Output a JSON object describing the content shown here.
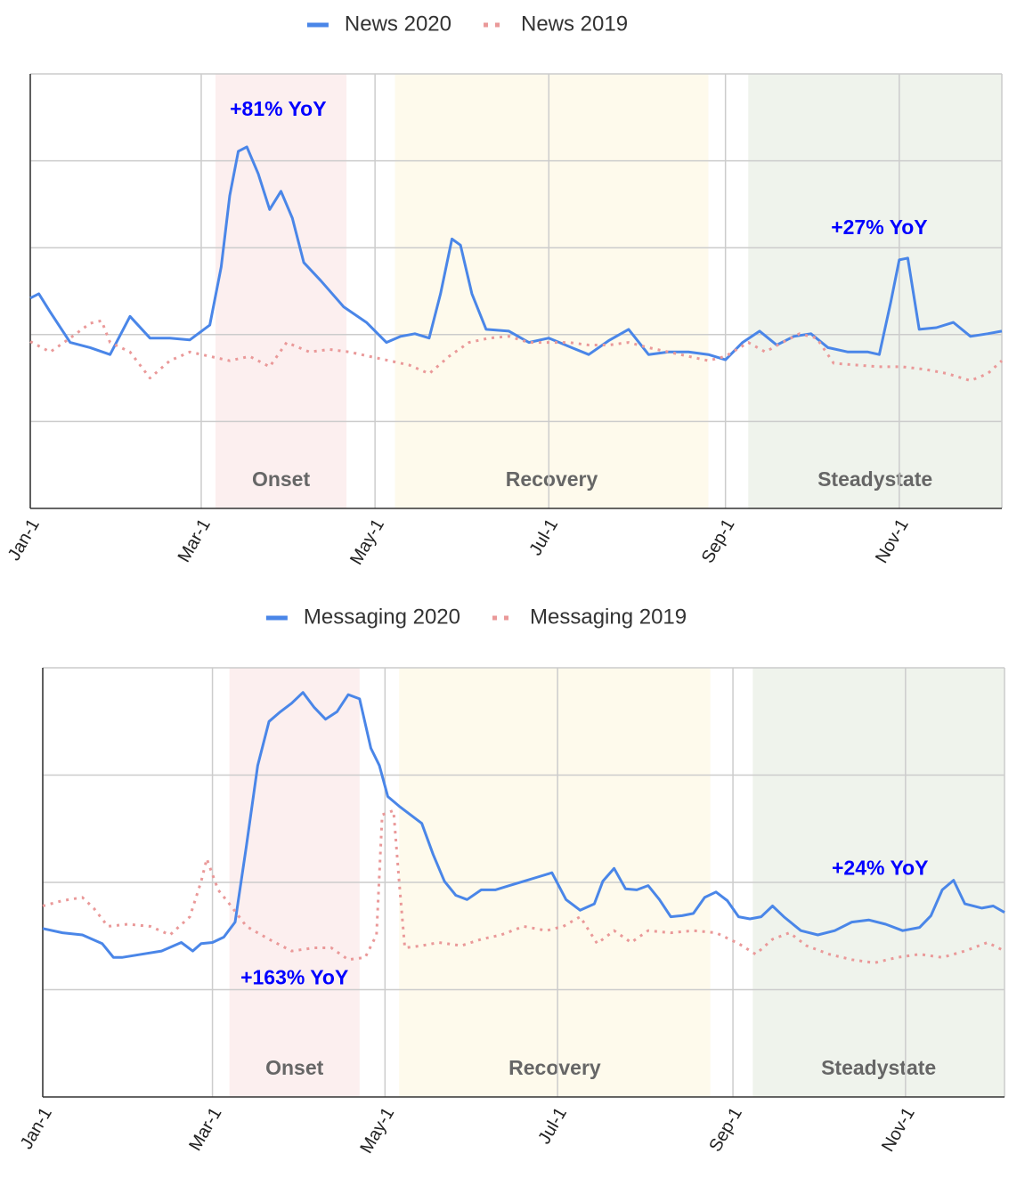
{
  "chart_data": [
    {
      "type": "line",
      "xlim": [
        0,
        341
      ],
      "ylim": [
        0,
        5
      ],
      "ygrid": [
        1,
        2,
        3,
        4
      ],
      "xticks": [
        {
          "value": 0,
          "label": "Jan-1"
        },
        {
          "value": 60,
          "label": "Mar-1"
        },
        {
          "value": 121,
          "label": "May-1"
        },
        {
          "value": 182,
          "label": "Jul-1"
        },
        {
          "value": 244,
          "label": "Sep-1"
        },
        {
          "value": 305,
          "label": "Nov-1"
        }
      ],
      "regions": [
        {
          "label": "Onset",
          "x": [
            65,
            111
          ],
          "color": "#fcefef"
        },
        {
          "label": "Recovery",
          "x": [
            128,
            238
          ],
          "color": "#fefaec"
        },
        {
          "label": "Steadystate",
          "x": [
            252,
            341
          ],
          "color": "#eff3ec"
        }
      ],
      "annotations": [
        {
          "text": "+81% YoY",
          "x": 87,
          "y": 4.58,
          "color": "#0000ff"
        },
        {
          "text": "+27% YoY",
          "x": 298,
          "y": 3.22,
          "color": "#0000ff"
        }
      ],
      "series": [
        {
          "name": "News 2020",
          "color": "#4a86e8",
          "style": "solid",
          "x": [
            0,
            3,
            7,
            14,
            21,
            28,
            35,
            42,
            49,
            56,
            63,
            67,
            70,
            73,
            76,
            80,
            84,
            88,
            92,
            96,
            102,
            110,
            118,
            125,
            130,
            135,
            140,
            144,
            148,
            151,
            155,
            160,
            168,
            175,
            182,
            190,
            196,
            203,
            210,
            217,
            224,
            231,
            238,
            244,
            250,
            256,
            262,
            268,
            274,
            280,
            287,
            294,
            298,
            302,
            305,
            308,
            312,
            318,
            324,
            330,
            336,
            341
          ],
          "values": [
            2.42,
            2.47,
            2.26,
            1.91,
            1.85,
            1.77,
            2.21,
            1.96,
            1.96,
            1.94,
            2.11,
            2.78,
            3.6,
            4.11,
            4.16,
            3.85,
            3.44,
            3.65,
            3.34,
            2.83,
            2.62,
            2.32,
            2.14,
            1.91,
            1.98,
            2.01,
            1.96,
            2.47,
            3.1,
            3.03,
            2.47,
            2.06,
            2.04,
            1.91,
            1.96,
            1.85,
            1.77,
            1.93,
            2.06,
            1.77,
            1.8,
            1.8,
            1.77,
            1.71,
            1.91,
            2.04,
            1.88,
            1.98,
            2.01,
            1.85,
            1.8,
            1.8,
            1.77,
            2.37,
            2.86,
            2.88,
            2.06,
            2.08,
            2.14,
            1.98,
            2.01,
            2.04
          ]
        },
        {
          "name": "News 2019",
          "color": "#ea9999",
          "style": "dotted",
          "x": [
            0,
            7,
            14,
            21,
            25,
            28,
            35,
            42,
            49,
            56,
            63,
            70,
            77,
            84,
            90,
            98,
            105,
            112,
            119,
            126,
            133,
            140,
            147,
            154,
            161,
            168,
            175,
            182,
            189,
            196,
            203,
            210,
            217,
            224,
            231,
            238,
            244,
            252,
            258,
            264,
            270,
            276,
            282,
            290,
            298,
            306,
            314,
            322,
            330,
            336,
            341
          ],
          "values": [
            1.92,
            1.8,
            1.96,
            2.13,
            2.16,
            1.91,
            1.8,
            1.5,
            1.7,
            1.8,
            1.75,
            1.7,
            1.75,
            1.63,
            1.91,
            1.8,
            1.83,
            1.8,
            1.75,
            1.7,
            1.65,
            1.55,
            1.75,
            1.91,
            1.96,
            1.98,
            1.91,
            1.91,
            1.91,
            1.88,
            1.88,
            1.91,
            1.85,
            1.8,
            1.75,
            1.7,
            1.75,
            1.91,
            1.8,
            1.91,
            2.01,
            1.96,
            1.67,
            1.65,
            1.63,
            1.63,
            1.6,
            1.55,
            1.47,
            1.55,
            1.7
          ]
        }
      ]
    },
    {
      "type": "line",
      "xlim": [
        0,
        340
      ],
      "ylim": [
        0,
        4
      ],
      "ygrid": [
        1,
        2,
        3
      ],
      "xticks": [
        {
          "value": 0,
          "label": "Jan-1"
        },
        {
          "value": 60,
          "label": "Mar-1"
        },
        {
          "value": 121,
          "label": "May-1"
        },
        {
          "value": 182,
          "label": "Jul-1"
        },
        {
          "value": 244,
          "label": "Sep-1"
        },
        {
          "value": 305,
          "label": "Nov-1"
        }
      ],
      "regions": [
        {
          "label": "Onset",
          "x": [
            66,
            112
          ],
          "color": "#fcefef"
        },
        {
          "label": "Recovery",
          "x": [
            126,
            236
          ],
          "color": "#fefaec"
        },
        {
          "label": "Steadystate",
          "x": [
            251,
            340
          ],
          "color": "#eff3ec"
        }
      ],
      "annotations": [
        {
          "text": "+163% YoY",
          "x": 89,
          "y": 1.1,
          "color": "#0000ff"
        },
        {
          "text": "+24% YoY",
          "x": 296,
          "y": 2.12,
          "color": "#0000ff"
        }
      ],
      "series": [
        {
          "name": "Messaging 2020",
          "color": "#4a86e8",
          "style": "solid",
          "x": [
            0,
            7,
            14,
            21,
            25,
            28,
            35,
            42,
            49,
            53,
            56,
            60,
            64,
            68,
            72,
            76,
            80,
            84,
            88,
            92,
            96,
            100,
            104,
            108,
            112,
            116,
            119,
            122,
            126,
            130,
            134,
            138,
            142,
            146,
            150,
            155,
            160,
            165,
            170,
            175,
            180,
            185,
            190,
            195,
            198,
            202,
            206,
            210,
            214,
            218,
            222,
            226,
            230,
            234,
            238,
            242,
            246,
            250,
            254,
            258,
            262,
            268,
            274,
            280,
            286,
            292,
            298,
            304,
            310,
            314,
            318,
            322,
            326,
            332,
            336,
            340
          ],
          "values": [
            1.57,
            1.53,
            1.51,
            1.43,
            1.3,
            1.3,
            1.33,
            1.36,
            1.44,
            1.36,
            1.43,
            1.44,
            1.49,
            1.63,
            2.34,
            3.09,
            3.5,
            3.59,
            3.67,
            3.77,
            3.63,
            3.52,
            3.59,
            3.75,
            3.71,
            3.25,
            3.09,
            2.8,
            2.71,
            2.63,
            2.55,
            2.26,
            2.01,
            1.88,
            1.84,
            1.93,
            1.93,
            1.97,
            2.01,
            2.05,
            2.09,
            1.84,
            1.74,
            1.8,
            2.01,
            2.13,
            1.94,
            1.93,
            1.97,
            1.84,
            1.68,
            1.69,
            1.71,
            1.86,
            1.91,
            1.83,
            1.68,
            1.66,
            1.68,
            1.78,
            1.68,
            1.55,
            1.51,
            1.55,
            1.63,
            1.65,
            1.61,
            1.55,
            1.58,
            1.69,
            1.93,
            2.02,
            1.8,
            1.76,
            1.78,
            1.72
          ]
        },
        {
          "name": "Messaging 2019",
          "color": "#ea9999",
          "style": "dotted",
          "x": [
            0,
            7,
            14,
            18,
            23,
            30,
            38,
            45,
            52,
            56,
            58,
            62,
            66,
            72,
            80,
            88,
            96,
            102,
            108,
            114,
            118,
            120,
            124,
            126,
            128,
            134,
            140,
            148,
            155,
            162,
            170,
            178,
            184,
            190,
            196,
            202,
            208,
            214,
            222,
            230,
            238,
            246,
            252,
            258,
            264,
            270,
            278,
            286,
            294,
            302,
            310,
            318,
            326,
            334,
            340
          ],
          "values": [
            1.78,
            1.83,
            1.86,
            1.76,
            1.59,
            1.61,
            1.59,
            1.51,
            1.68,
            2.01,
            2.22,
            1.93,
            1.8,
            1.59,
            1.47,
            1.36,
            1.39,
            1.39,
            1.28,
            1.3,
            1.51,
            2.63,
            2.67,
            2.01,
            1.39,
            1.41,
            1.44,
            1.41,
            1.47,
            1.51,
            1.59,
            1.55,
            1.59,
            1.68,
            1.43,
            1.55,
            1.44,
            1.55,
            1.53,
            1.55,
            1.53,
            1.43,
            1.33,
            1.47,
            1.53,
            1.41,
            1.33,
            1.28,
            1.25,
            1.3,
            1.33,
            1.3,
            1.36,
            1.44,
            1.36
          ]
        }
      ]
    }
  ]
}
